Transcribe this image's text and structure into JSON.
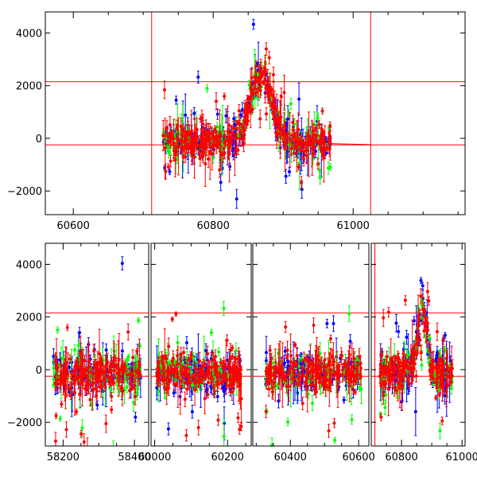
{
  "colors": {
    "blue": "#0000ff",
    "green": "#00ff00",
    "red": "#ff0000",
    "axis": "#000000",
    "ref": "#ff0000"
  },
  "chart_data": [
    {
      "type": "scatter",
      "title": "",
      "xlabel": "",
      "ylabel": "",
      "xlim": [
        60560,
        61160
      ],
      "ylim": [
        -2900,
        4800
      ],
      "x_ticks": [
        60600,
        60800,
        61000
      ],
      "x_tick_labels": [
        "60600",
        "60800",
        "61000"
      ],
      "y_ticks": [
        -2000,
        0,
        2000,
        4000
      ],
      "y_tick_labels": [
        "−2000",
        "0",
        "2000",
        "4000"
      ],
      "ref_hlines": [
        2150,
        -250
      ],
      "ref_vlines": [
        60712,
        61025
      ],
      "data_range": [
        60728,
        60968
      ],
      "peak_x": 60868,
      "peak_y": 2600,
      "baseline_y": -150,
      "scatter_y": 280,
      "series": [
        {
          "name": "",
          "color": "blue",
          "points": 220
        },
        {
          "name": "",
          "color": "green",
          "points": 140
        },
        {
          "name": "",
          "color": "red",
          "points": 360
        }
      ]
    },
    {
      "type": "scatter",
      "title": "",
      "xlabel": "",
      "ylabel": "",
      "ylim": [
        -2900,
        4800
      ],
      "broken_x_axis": true,
      "segments": [
        {
          "xlim": [
            58150,
            58440
          ],
          "x_ticks": [
            58200,
            58400
          ],
          "x_tick_labels": [
            "58200",
            "58400"
          ],
          "data_range": [
            58172,
            58418
          ]
        },
        {
          "xlim": [
            59990,
            60265
          ],
          "x_ticks": [
            60000,
            60200
          ],
          "x_tick_labels": [
            "60000",
            "60200"
          ],
          "data_range": [
            60005,
            60238
          ]
        },
        {
          "xlim": [
            60290,
            60630
          ],
          "x_ticks": [
            60400,
            60600
          ],
          "x_tick_labels": [
            "60400",
            "60600"
          ],
          "data_range": [
            60328,
            60608
          ]
        },
        {
          "xlim": [
            60700,
            61010
          ],
          "x_ticks": [
            60800,
            61000
          ],
          "x_tick_labels": [
            "60800",
            "61000"
          ],
          "data_range": [
            60728,
            60968
          ],
          "peak_x": 60868,
          "peak_y": 2600,
          "ref_vlines": [
            60712
          ]
        }
      ],
      "y_ticks": [
        -2000,
        0,
        2000,
        4000
      ],
      "y_tick_labels": [
        "−2000",
        "0",
        "2000",
        "4000"
      ],
      "ref_hlines": [
        2150,
        -250
      ],
      "baseline_y": -150,
      "scatter_y": 330,
      "series": [
        {
          "name": "",
          "color": "blue",
          "points_per_segment": 120
        },
        {
          "name": "",
          "color": "green",
          "points_per_segment": 90
        },
        {
          "name": "",
          "color": "red",
          "points_per_segment": 190
        }
      ]
    }
  ]
}
